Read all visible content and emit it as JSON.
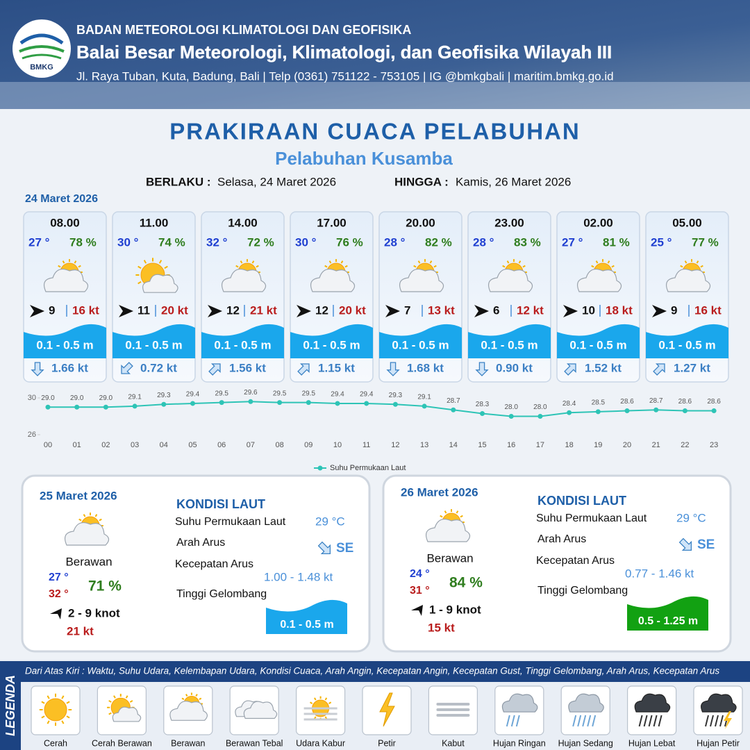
{
  "header": {
    "logo_text": "BMKG",
    "agency": "BADAN METEOROLOGI KLIMATOLOGI DAN GEOFISIKA",
    "office": "Balai Besar Meteorologi, Klimatologi, dan Geofisika Wilayah III",
    "contact": "Jl. Raya Tuban, Kuta, Badung, Bali | Telp (0361) 751122 - 753105 | IG @bmkgbali | maritim.bmkg.go.id"
  },
  "title": "PRAKIRAAN CUACA PELABUHAN",
  "subtitle": "Pelabuhan Kusamba",
  "validity": {
    "from_label": "BERLAKU :",
    "from": "Selasa, 24 Maret 2026",
    "to_label": "HINGGA :",
    "to": "Kamis, 26 Maret 2026"
  },
  "forecast": {
    "date": "24 Maret 2026",
    "slots": [
      {
        "time": "08.00",
        "temperature": "27 °",
        "humidity": "78 %",
        "wind_speed": "9",
        "gust": "16 kt",
        "wave_height": "0.1 - 0.5 m",
        "current_speed": "1.66 kt"
      },
      {
        "time": "11.00",
        "temperature": "30 °",
        "humidity": "74 %",
        "wind_speed": "11",
        "gust": "20 kt",
        "wave_height": "0.1 - 0.5 m",
        "current_speed": "0.72 kt"
      },
      {
        "time": "14.00",
        "temperature": "32 °",
        "humidity": "72 %",
        "wind_speed": "12",
        "gust": "21 kt",
        "wave_height": "0.1 - 0.5 m",
        "current_speed": "1.56 kt"
      },
      {
        "time": "17.00",
        "temperature": "30 °",
        "humidity": "76 %",
        "wind_speed": "12",
        "gust": "20 kt",
        "wave_height": "0.1 - 0.5 m",
        "current_speed": "1.15 kt"
      },
      {
        "time": "20.00",
        "temperature": "28 °",
        "humidity": "82 %",
        "wind_speed": "7",
        "gust": "13 kt",
        "wave_height": "0.1 - 0.5 m",
        "current_speed": "1.68 kt"
      },
      {
        "time": "23.00",
        "temperature": "28 °",
        "humidity": "83 %",
        "wind_speed": "6",
        "gust": "12 kt",
        "wave_height": "0.1 - 0.5 m",
        "current_speed": "0.90 kt"
      },
      {
        "time": "02.00",
        "temperature": "27 °",
        "humidity": "81 %",
        "wind_speed": "10",
        "gust": "18 kt",
        "wave_height": "0.1 - 0.5 m",
        "current_speed": "1.52 kt"
      },
      {
        "time": "05.00",
        "temperature": "25 °",
        "humidity": "77 %",
        "wind_speed": "9",
        "gust": "16 kt",
        "wave_height": "0.1 - 0.5 m",
        "current_speed": "1.27 kt"
      }
    ]
  },
  "chart_data": {
    "type": "line",
    "categories": [
      "00",
      "01",
      "02",
      "03",
      "04",
      "05",
      "06",
      "07",
      "08",
      "09",
      "10",
      "11",
      "12",
      "13",
      "14",
      "15",
      "16",
      "17",
      "18",
      "19",
      "20",
      "21",
      "22",
      "23"
    ],
    "series": [
      {
        "name": "Suhu Permukaan Laut",
        "color": "#2ec4b6",
        "values": [
          29.0,
          29.0,
          29.0,
          29.1,
          29.3,
          29.4,
          29.5,
          29.6,
          29.5,
          29.5,
          29.4,
          29.4,
          29.3,
          29.1,
          28.7,
          28.3,
          28.0,
          28.0,
          28.4,
          28.5,
          28.6,
          28.7,
          28.6,
          28.6
        ],
        "value_labels": [
          "29.0",
          "29.0",
          "29.0",
          "29.1",
          "29.3",
          "29.4",
          "29.5",
          "29.6",
          "29.5",
          "29.5",
          "29.4",
          "29.4",
          "29.3",
          "29.1",
          "28.7",
          "28.3",
          "28.0",
          "28.0",
          "28.4",
          "28.5",
          "28.6",
          "28.7",
          "28.6",
          "28.6"
        ]
      }
    ],
    "ylim": [
      26,
      30
    ],
    "yticks": [
      26,
      30
    ]
  },
  "daily": [
    {
      "date": "25 Maret 2026",
      "condition": "Berawan",
      "temp_min": "27 °",
      "temp_max": "32 °",
      "humidity": "71 %",
      "wind": "2  - 9 knot",
      "gust": "21 kt",
      "sea_title": "KONDISI LAUT",
      "sst_label": "Suhu Permukaan Laut",
      "sst": "29 °C",
      "current_dir_label": "Arah Arus",
      "current_dir": "SE",
      "current_speed_label": "Kecepatan Arus",
      "current_speed": "1.00 - 1.48 kt",
      "wave_label": "Tinggi Gelombang",
      "wave": "0.1 - 0.5 m"
    },
    {
      "date": "26 Maret 2026",
      "condition": "Berawan",
      "temp_min": "24 °",
      "temp_max": "31 °",
      "humidity": "84 %",
      "wind": "1  - 9 knot",
      "gust": "15 kt",
      "sea_title": "KONDISI LAUT",
      "sst_label": "Suhu Permukaan Laut",
      "sst": "29 °C",
      "current_dir_label": "Arah Arus",
      "current_dir": "SE",
      "current_speed_label": "Kecepatan Arus",
      "current_speed": "0.77 - 1.46 kt",
      "wave_label": "Tinggi Gelombang",
      "wave": "0.5 - 1.25 m"
    }
  ],
  "legend": {
    "title": "LEGENDA",
    "description": "Dari Atas Kiri : Waktu, Suhu Udara, Kelembapan Udara, Kondisi Cuaca, Arah Angin, Kecepatan Angin, Kecepatan Gust, Tinggi Gelombang, Arah Arus, Kecepatan Arus",
    "items": [
      "Cerah",
      "Cerah Berawan",
      "Berawan",
      "Berawan Tebal",
      "Udara Kabur",
      "Petir",
      "Kabut",
      "Hujan Ringan",
      "Hujan Sedang",
      "Hujan Lebat",
      "Hujan Petir"
    ]
  }
}
